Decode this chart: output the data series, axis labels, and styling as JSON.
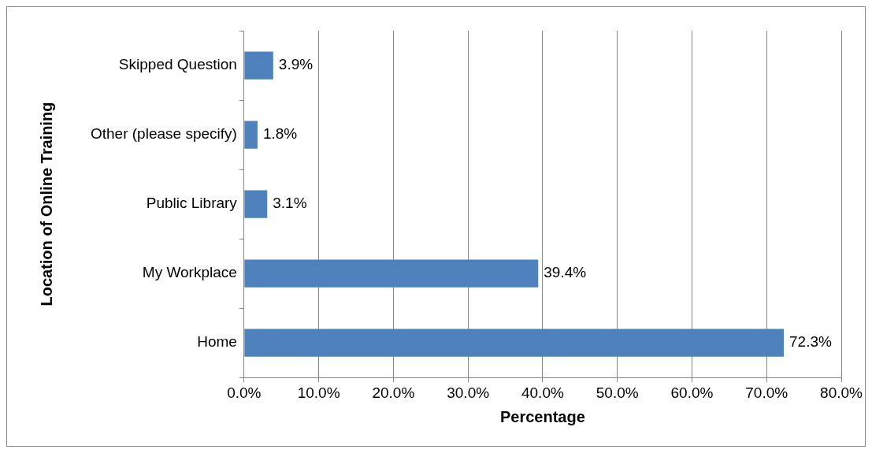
{
  "chart_data": {
    "type": "bar",
    "orientation": "horizontal",
    "xlabel": "Percentage",
    "ylabel": "Location of Online Training",
    "categories": [
      "Skipped Question",
      "Other (please specify)",
      "Public Library",
      "My Workplace",
      "Home"
    ],
    "values": [
      3.9,
      1.8,
      3.1,
      39.4,
      72.3
    ],
    "value_labels": [
      "3.9%",
      "1.8%",
      "3.1%",
      "39.4%",
      "72.3%"
    ],
    "color": "#4f81bd",
    "xlim": [
      0,
      80
    ],
    "xticks": [
      {
        "value": 0,
        "label": "0.0%"
      },
      {
        "value": 10,
        "label": "10.0%"
      },
      {
        "value": 20,
        "label": "20.0%"
      },
      {
        "value": 30,
        "label": "30.0%"
      },
      {
        "value": 40,
        "label": "40.0%"
      },
      {
        "value": 50,
        "label": "50.0%"
      },
      {
        "value": 60,
        "label": "60.0%"
      },
      {
        "value": 70,
        "label": "70.0%"
      },
      {
        "value": 80,
        "label": "80.0%"
      }
    ],
    "grid": "x",
    "legend": false
  }
}
